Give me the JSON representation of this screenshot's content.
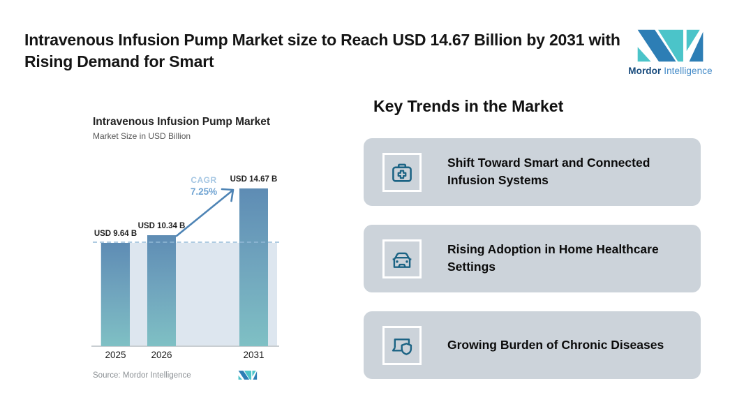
{
  "header": {
    "title": "Intravenous Infusion Pump Market size to Reach USD 14.67 Billion by 2031 with Rising Demand for Smart"
  },
  "brand": {
    "name_bold": "Mordor",
    "name_light": "Intelligence"
  },
  "chart": {
    "title": "Intravenous Infusion Pump Market",
    "subtitle": "Market Size in USD Billion",
    "cagr_label": "CAGR",
    "cagr_value": "7.25%",
    "source": "Source: Mordor Intelligence"
  },
  "chart_data": {
    "type": "bar",
    "title": "Intravenous Infusion Pump Market",
    "subtitle": "Market Size in USD Billion",
    "categories": [
      "2025",
      "2026",
      "2031"
    ],
    "values": [
      9.64,
      10.34,
      14.67
    ],
    "bar_labels": [
      "USD 9.64 B",
      "USD 10.34 B",
      "USD 14.67 B"
    ],
    "ylim": [
      0,
      16
    ],
    "grid": false,
    "legend": "none",
    "annotations": [
      {
        "text": "CAGR",
        "color": "#a6c7e3"
      },
      {
        "text": "7.25%",
        "color": "#6fa3d2"
      }
    ],
    "reference_line": {
      "y": 9.64,
      "style": "dashed",
      "color": "#93bad7"
    }
  },
  "trends": {
    "heading": "Key Trends in the Market",
    "items": [
      {
        "icon": "first-aid-kit-icon",
        "text": "Shift Toward Smart and Connected Infusion Systems"
      },
      {
        "icon": "car-icon",
        "text": "Rising Adoption in Home Healthcare Settings"
      },
      {
        "icon": "laptop-shield-icon",
        "text": "Growing Burden of Chronic Diseases"
      }
    ]
  },
  "colors": {
    "bar_gradient_top": "#5e8cb4",
    "bar_gradient_bottom": "#7fc0c4",
    "shaded_area": "#dde6ef",
    "dashed_line": "#93bad7",
    "arrow": "#4e84b5",
    "card_background": "#ccd3da",
    "icon_stroke": "#1b6384",
    "brand_teal": "#4bc4c9",
    "brand_blue": "#2d7eb5",
    "brand_navy_text": "#174a7c"
  }
}
